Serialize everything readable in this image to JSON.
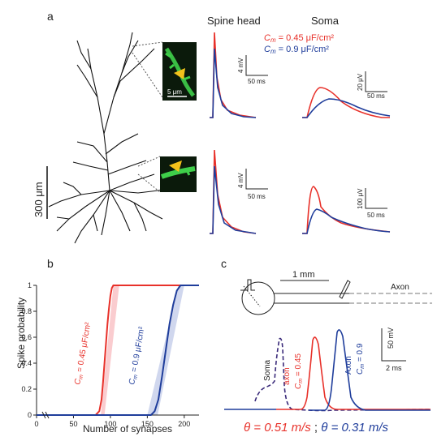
{
  "panels": {
    "a": "a",
    "b": "b",
    "c": "c"
  },
  "colors": {
    "red": "#e8312a",
    "blue": "#1f3d9b",
    "red_band": "#f5a3a8",
    "blue_band": "#a9b7e0",
    "neuron": "#111111",
    "spine_bg": "#0b1a0b",
    "spine_green": "#3fcf4a",
    "arrow_yellow": "#f3c21b"
  },
  "panel_a": {
    "col_spine": "Spine head",
    "col_soma": "Soma",
    "legend_red": "C",
    "legend_red_sub": "m",
    "legend_red_val": " = 0.45 μF/cm²",
    "legend_blue": "C",
    "legend_blue_sub": "m",
    "legend_blue_val": " = 0.9 μF/cm²",
    "scale_um_small": "5 μm",
    "scale_neuron": "300 μm",
    "top_spine_y": "4 mV",
    "top_spine_x": "50 ms",
    "top_soma_y": "20 μV",
    "top_soma_x": "50 ms",
    "bot_spine_y": "4 mV",
    "bot_spine_x": "50 ms",
    "bot_soma_y": "100 μV",
    "bot_soma_x": "50 ms"
  },
  "panel_b": {
    "ylabel": "Spike probability",
    "xlabel": "Number of synapses",
    "xticks": [
      "0",
      "50",
      "100",
      "150",
      "200"
    ],
    "yticks": [
      "0",
      "0.2",
      "0.4",
      "0.6",
      "0.8",
      "1"
    ],
    "red_label_pre": "C",
    "red_label_sub": "m",
    "red_label_val": " = 0.45 μF/cm²",
    "blue_label_pre": "C",
    "blue_label_sub": "m",
    "blue_label_val": " = 0.9 μF/cm²"
  },
  "panel_c": {
    "scale_mm": "1 mm",
    "axon_label": "Axon",
    "soma_label": "Soma",
    "red_axon": "axon",
    "red_cm": "C",
    "red_cm_sub": "m",
    "red_cm_val": " = 0.45",
    "blue_axon": "Axon",
    "blue_cm": "C",
    "blue_cm_sub": "m",
    "blue_cm_val": " = 0.9",
    "scale_mv": "50 mV",
    "scale_ms": "2 ms",
    "theta_red": "θ = 0.51 m/s",
    "theta_sep": " ; ",
    "theta_blue": "θ = 0.31 m/s"
  },
  "chart_data": {
    "type": "line",
    "title": "",
    "xlabel": "Number of synapses",
    "ylabel": "Spike probability",
    "xlim": [
      0,
      220
    ],
    "ylim": [
      0,
      1
    ],
    "series": [
      {
        "name": "Cm = 0.45 μF/cm²",
        "x": [
          0,
          80,
          85,
          88,
          90,
          92,
          94,
          96,
          98,
          100,
          102,
          104,
          220
        ],
        "values": [
          0,
          0,
          0.03,
          0.12,
          0.25,
          0.4,
          0.55,
          0.7,
          0.82,
          0.92,
          0.98,
          1,
          1
        ]
      },
      {
        "name": "Cm = 0.9 μF/cm²",
        "x": [
          0,
          155,
          160,
          165,
          170,
          175,
          180,
          185,
          190,
          195,
          220
        ],
        "values": [
          0,
          0,
          0.03,
          0.12,
          0.3,
          0.5,
          0.7,
          0.85,
          0.96,
          1,
          1
        ]
      }
    ]
  }
}
